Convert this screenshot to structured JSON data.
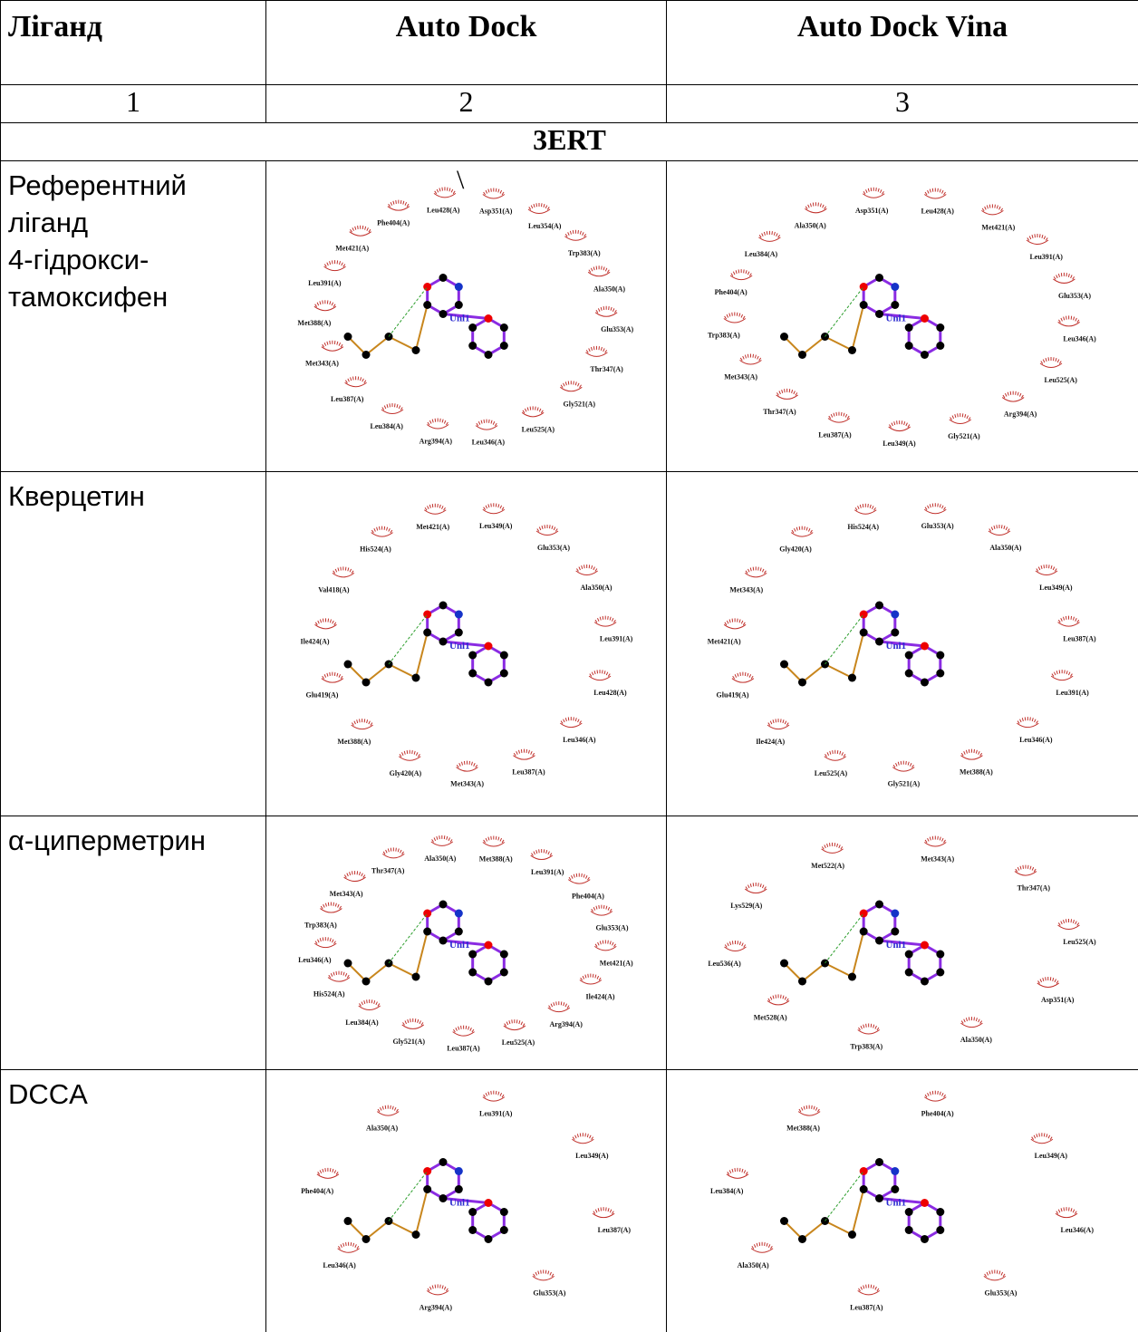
{
  "table": {
    "header": [
      "Ліганд",
      "Auto Dock",
      "Auto Dock Vina"
    ],
    "numbers": [
      "1",
      "2",
      "3"
    ],
    "section": "3ERT",
    "rows": [
      {
        "ligand": [
          "Референтний",
          "лiганд",
          "4-гідрокси-",
          "тамоксифен"
        ],
        "autodock": {
          "note": "\\",
          "center": "Unl1",
          "residues": [
            "Asp351(A)",
            "Leu354(A)",
            "Trp383(A)",
            "Ala350(A)",
            "Glu353(A)",
            "Thr347(A)",
            "Gly521(A)",
            "Leu525(A)",
            "Leu346(A)",
            "Arg394(A)",
            "Leu384(A)",
            "Leu387(A)",
            "Met343(A)",
            "Met388(A)",
            "Leu391(A)",
            "Met421(A)",
            "Phe404(A)",
            "Leu428(A)"
          ]
        },
        "vina": {
          "center": "Unl1",
          "residues": [
            "Leu428(A)",
            "Met421(A)",
            "Leu391(A)",
            "Glu353(A)",
            "Leu346(A)",
            "Leu525(A)",
            "Arg394(A)",
            "Gly521(A)",
            "Leu349(A)",
            "Leu387(A)",
            "Thr347(A)",
            "Met343(A)",
            "Trp383(A)",
            "Phe404(A)",
            "Leu384(A)",
            "Ala350(A)",
            "Asp351(A)"
          ]
        }
      },
      {
        "ligand": [
          "Кверцетин"
        ],
        "autodock": {
          "center": "Unl1",
          "residues": [
            "Leu349(A)",
            "Glu353(A)",
            "Ala350(A)",
            "Leu391(A)",
            "Leu428(A)",
            "Leu346(A)",
            "Leu387(A)",
            "Met343(A)",
            "Gly420(A)",
            "Met388(A)",
            "Glu419(A)",
            "Ile424(A)",
            "Val418(A)",
            "His524(A)",
            "Met421(A)"
          ]
        },
        "vina": {
          "center": "Unl1",
          "residues": [
            "Glu353(A)",
            "Ala350(A)",
            "Leu349(A)",
            "Leu387(A)",
            "Leu391(A)",
            "Leu346(A)",
            "Met388(A)",
            "Gly521(A)",
            "Leu525(A)",
            "Ile424(A)",
            "Glu419(A)",
            "Met421(A)",
            "Met343(A)",
            "Gly420(A)",
            "His524(A)"
          ]
        }
      },
      {
        "ligand": [
          "α-циперметрин"
        ],
        "autodock": {
          "center": "Unl1",
          "residues": [
            "Met388(A)",
            "Leu391(A)",
            "Phe404(A)",
            "Glu353(A)",
            "Met421(A)",
            "Ile424(A)",
            "Arg394(A)",
            "Leu525(A)",
            "Leu387(A)",
            "Gly521(A)",
            "Leu384(A)",
            "His524(A)",
            "Leu346(A)",
            "Trp383(A)",
            "Met343(A)",
            "Thr347(A)",
            "Ala350(A)"
          ]
        },
        "vina": {
          "center": "Unl1",
          "residues": [
            "Met343(A)",
            "Thr347(A)",
            "Leu525(A)",
            "Asp351(A)",
            "Ala350(A)",
            "Trp383(A)",
            "Met528(A)",
            "Leu536(A)",
            "Lys529(A)",
            "Met522(A)"
          ]
        }
      },
      {
        "ligand": [
          "DCCA"
        ],
        "autodock": {
          "center": "Unl1",
          "residues": [
            "Leu391(A)",
            "Leu349(A)",
            "Leu387(A)",
            "Glu353(A)",
            "Arg394(A)",
            "Leu346(A)",
            "Phe404(A)",
            "Ala350(A)"
          ]
        },
        "vina": {
          "center": "Unl1",
          "residues": [
            "Phe404(A)",
            "Leu349(A)",
            "Leu346(A)",
            "Glu353(A)",
            "Leu387(A)",
            "Ala350(A)",
            "Leu384(A)",
            "Met388(A)"
          ]
        }
      }
    ]
  }
}
